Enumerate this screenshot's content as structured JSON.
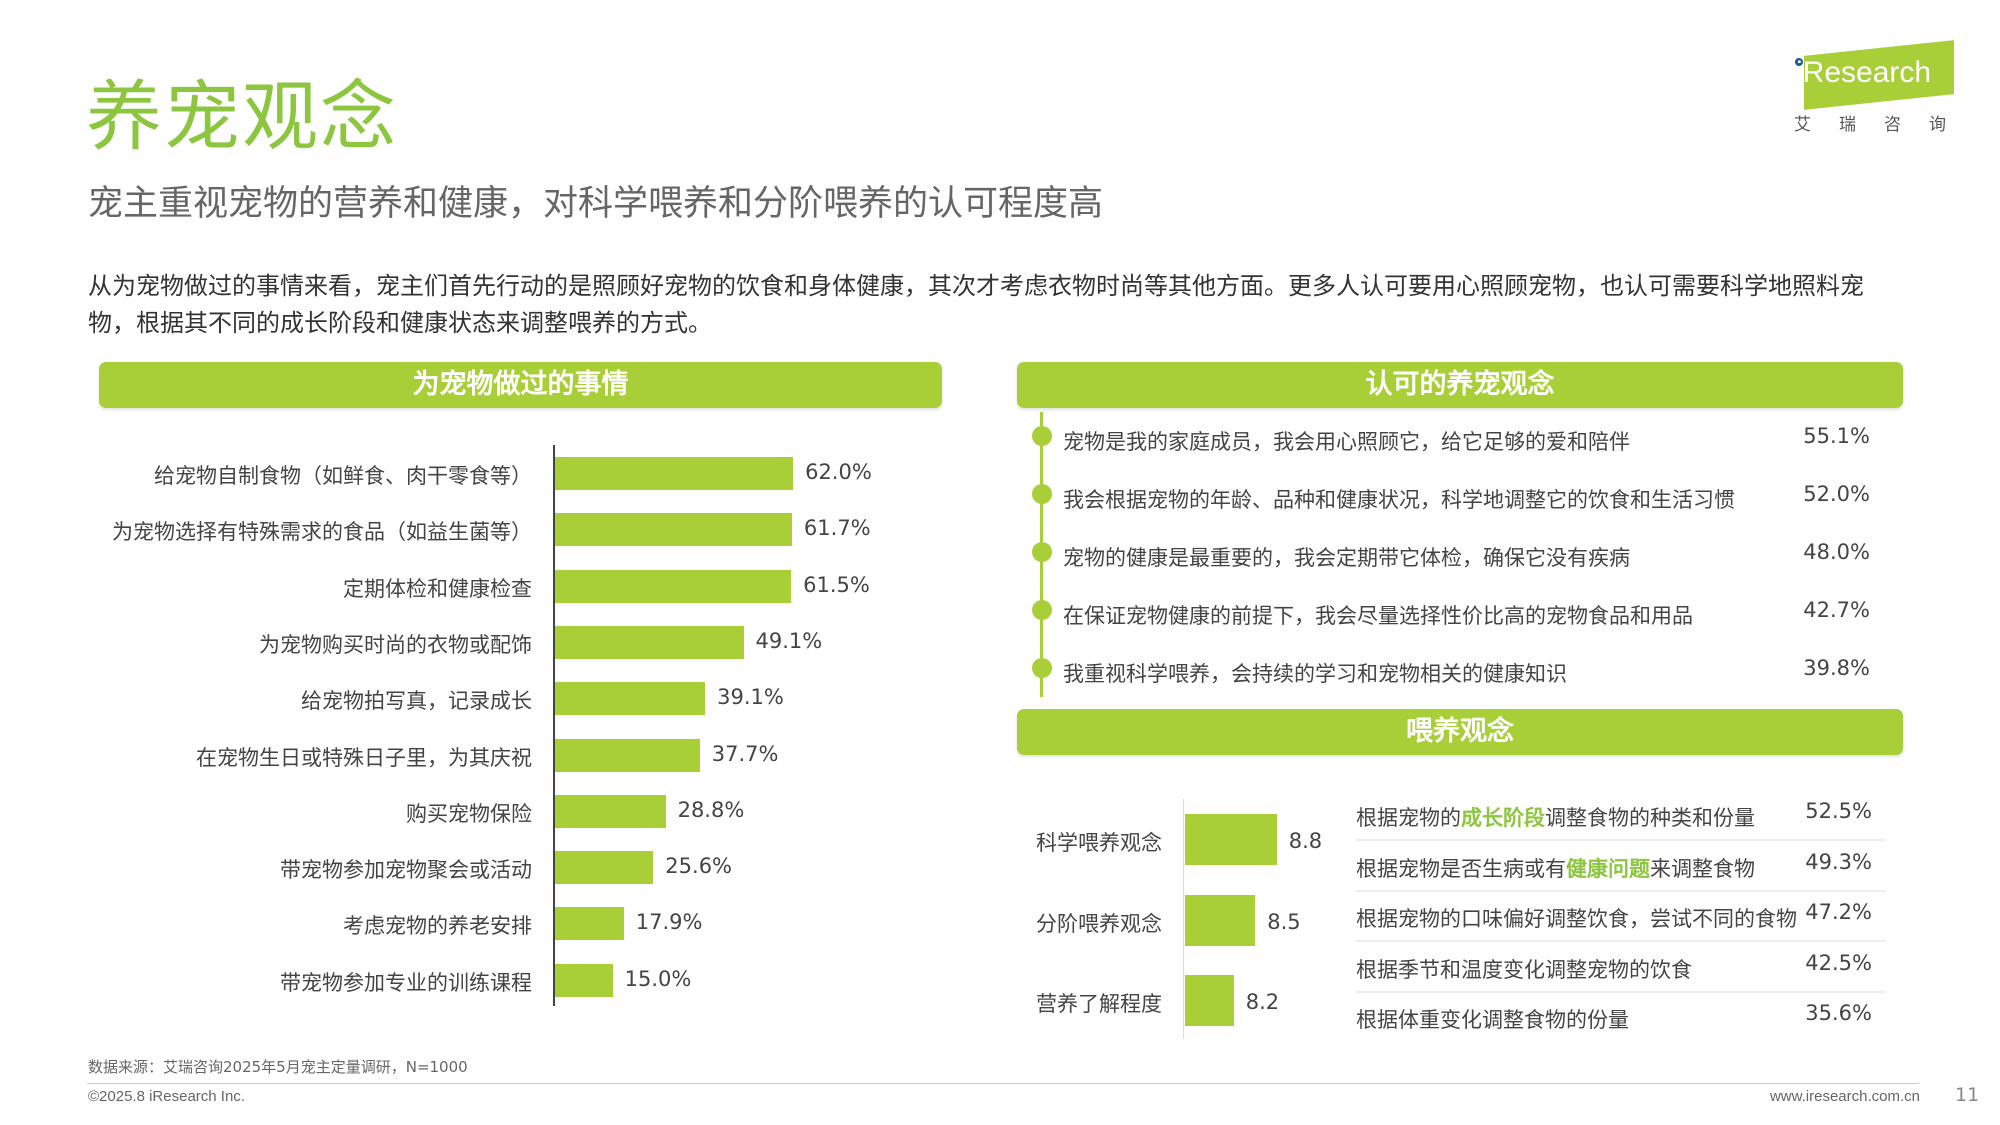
{
  "header": {
    "title": "养宠观念",
    "subtitle": "宠主重视宠物的营养和健康，对科学喂养和分阶喂养的认可程度高",
    "intro": "从为宠物做过的事情来看，宠主们首先行动的是照顾好宠物的饮食和身体健康，其次才考虑衣物时尚等其他方面。更多人认可要用心照顾宠物，也认可需要科学地照料宠物，根据其不同的成长阶段和健康状态来调整喂养的方式。"
  },
  "logo": {
    "text": "iResearch",
    "cn": "艾瑞咨询"
  },
  "colors": {
    "accent": "#a9cf38",
    "title": "#8cc63f"
  },
  "panels": {
    "left_title": "为宠物做过的事情",
    "right_top_title": "认可的养宠观念",
    "right_bottom_title": "喂养观念"
  },
  "chart_data": [
    {
      "type": "bar",
      "orientation": "horizontal",
      "categories": [
        "给宠物自制食物（如鲜食、肉干零食等）",
        "为宠物选择有特殊需求的食品（如益生菌等）",
        "定期体检和健康检查",
        "为宠物购买时尚的衣物或配饰",
        "给宠物拍写真，记录成长",
        "在宠物生日或特殊日子里，为其庆祝",
        "购买宠物保险",
        "带宠物参加宠物聚会或活动",
        "考虑宠物的养老安排",
        "带宠物参加专业的训练课程"
      ],
      "values": [
        62.0,
        61.7,
        61.5,
        49.1,
        39.1,
        37.7,
        28.8,
        25.6,
        17.9,
        15.0
      ],
      "labels": [
        "62.0%",
        "61.7%",
        "61.5%",
        "49.1%",
        "39.1%",
        "37.7%",
        "28.8%",
        "25.6%",
        "17.9%",
        "15.0%"
      ],
      "unit": "%"
    },
    {
      "type": "bar",
      "orientation": "horizontal",
      "categories": [
        "科学喂养观念",
        "分阶喂养观念",
        "营养了解程度"
      ],
      "values": [
        8.8,
        8.5,
        8.2
      ],
      "labels": [
        "8.8",
        "8.5",
        "8.2"
      ]
    }
  ],
  "beliefs": [
    {
      "text": "宠物是我的家庭成员，我会用心照顾它，给它足够的爱和陪伴",
      "value": "55.1%"
    },
    {
      "text": "我会根据宠物的年龄、品种和健康状况，科学地调整它的饮食和生活习惯",
      "value": "52.0%"
    },
    {
      "text": "宠物的健康是最重要的，我会定期带它体检，确保它没有疾病",
      "value": "48.0%"
    },
    {
      "text": "在保证宠物健康的前提下，我会尽量选择性价比高的宠物食品和用品",
      "value": "42.7%"
    },
    {
      "text": "我重视科学喂养，会持续的学习和宠物相关的健康知识",
      "value": "39.8%"
    }
  ],
  "feeding_items": [
    {
      "pre": "根据宠物的",
      "hl": "成长阶段",
      "post": "调整食物的种类和份量",
      "value": "52.5%"
    },
    {
      "pre": "根据宠物是否生病或有",
      "hl": "健康问题",
      "post": "来调整食物",
      "value": "49.3%"
    },
    {
      "pre": "根据宠物的口味偏好调整饮食，尝试不同的食物",
      "hl": "",
      "post": "",
      "value": "47.2%"
    },
    {
      "pre": "根据季节和温度变化调整宠物的饮食",
      "hl": "",
      "post": "",
      "value": "42.5%"
    },
    {
      "pre": "根据体重变化调整食物的份量",
      "hl": "",
      "post": "",
      "value": "35.6%"
    }
  ],
  "footer": {
    "source": "数据来源：艾瑞咨询2025年5月宠主定量调研，N=1000",
    "copyright": "©2025.8 iResearch Inc.",
    "url": "www.iresearch.com.cn",
    "page": "11"
  }
}
